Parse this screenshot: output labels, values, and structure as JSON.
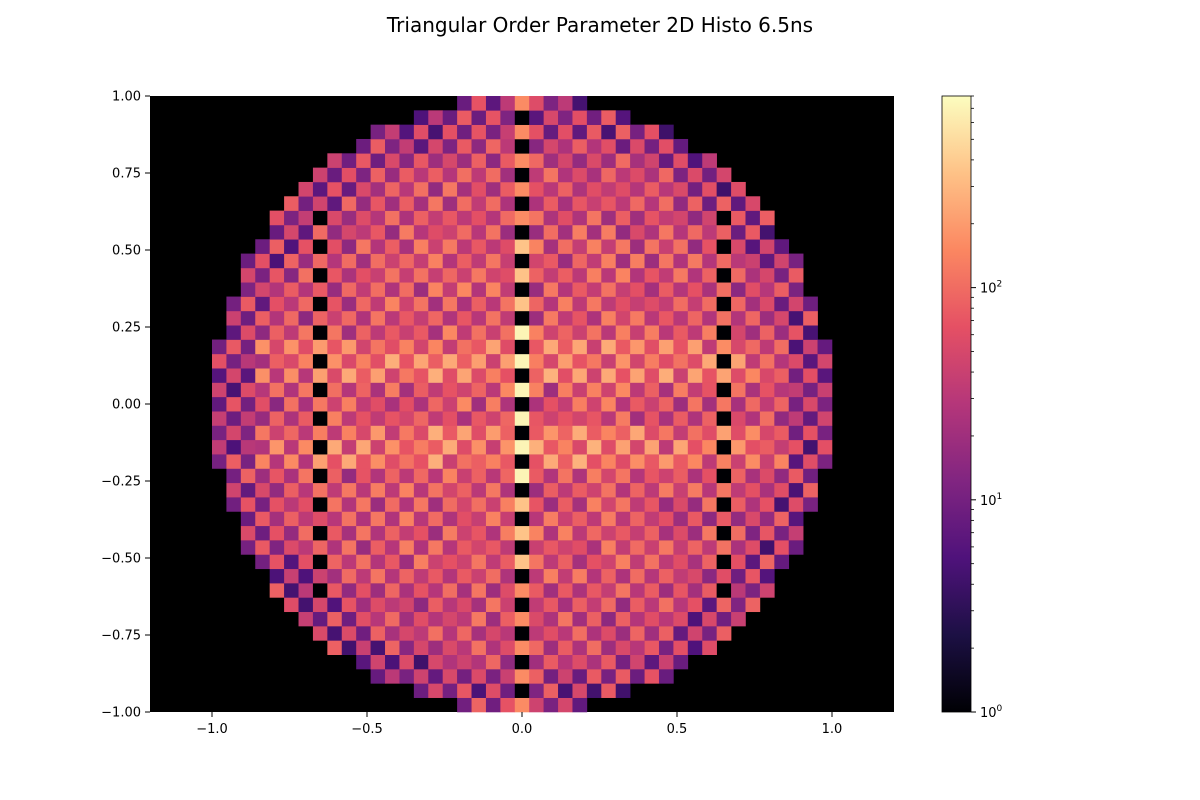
{
  "chart_data": {
    "type": "heatmap",
    "title": "Triangular Order Parameter 2D Histo 6.5ns",
    "xlabel": "",
    "ylabel": "",
    "xlim": [
      -1.2,
      1.2
    ],
    "ylim": [
      -1.0,
      1.0
    ],
    "x_ticks": [
      -1.0,
      -0.5,
      0.0,
      0.5,
      1.0
    ],
    "x_tick_labels": [
      "−1.0",
      "−0.5",
      "0.0",
      "0.5",
      "1.0"
    ],
    "y_ticks": [
      1.0,
      0.75,
      0.5,
      0.25,
      0.0,
      -0.25,
      -0.5,
      -0.75,
      -1.0
    ],
    "y_tick_labels": [
      "1.00",
      "0.75",
      "0.50",
      "0.25",
      "0.00",
      "−0.25",
      "−0.50",
      "−0.75",
      "−1.00"
    ],
    "grid": false,
    "bins": {
      "nx": 43,
      "ny": 43,
      "range": [
        -1.0,
        1.0
      ]
    },
    "support": "unit disk (x² + y² ≤ 1); empty bins outside",
    "colorbar": {
      "scale": "log",
      "min": 1,
      "max": 800,
      "colormap": "magma",
      "ticks": [
        1,
        10,
        100
      ],
      "tick_labels": [
        "10^0",
        "10^1",
        "10^2"
      ]
    },
    "colormap_stops": [
      "#000004",
      "#1c1044",
      "#4f127b",
      "#812581",
      "#b5367a",
      "#e55064",
      "#fb8761",
      "#fec287",
      "#fcfdbf"
    ],
    "background_color": "#000000"
  }
}
